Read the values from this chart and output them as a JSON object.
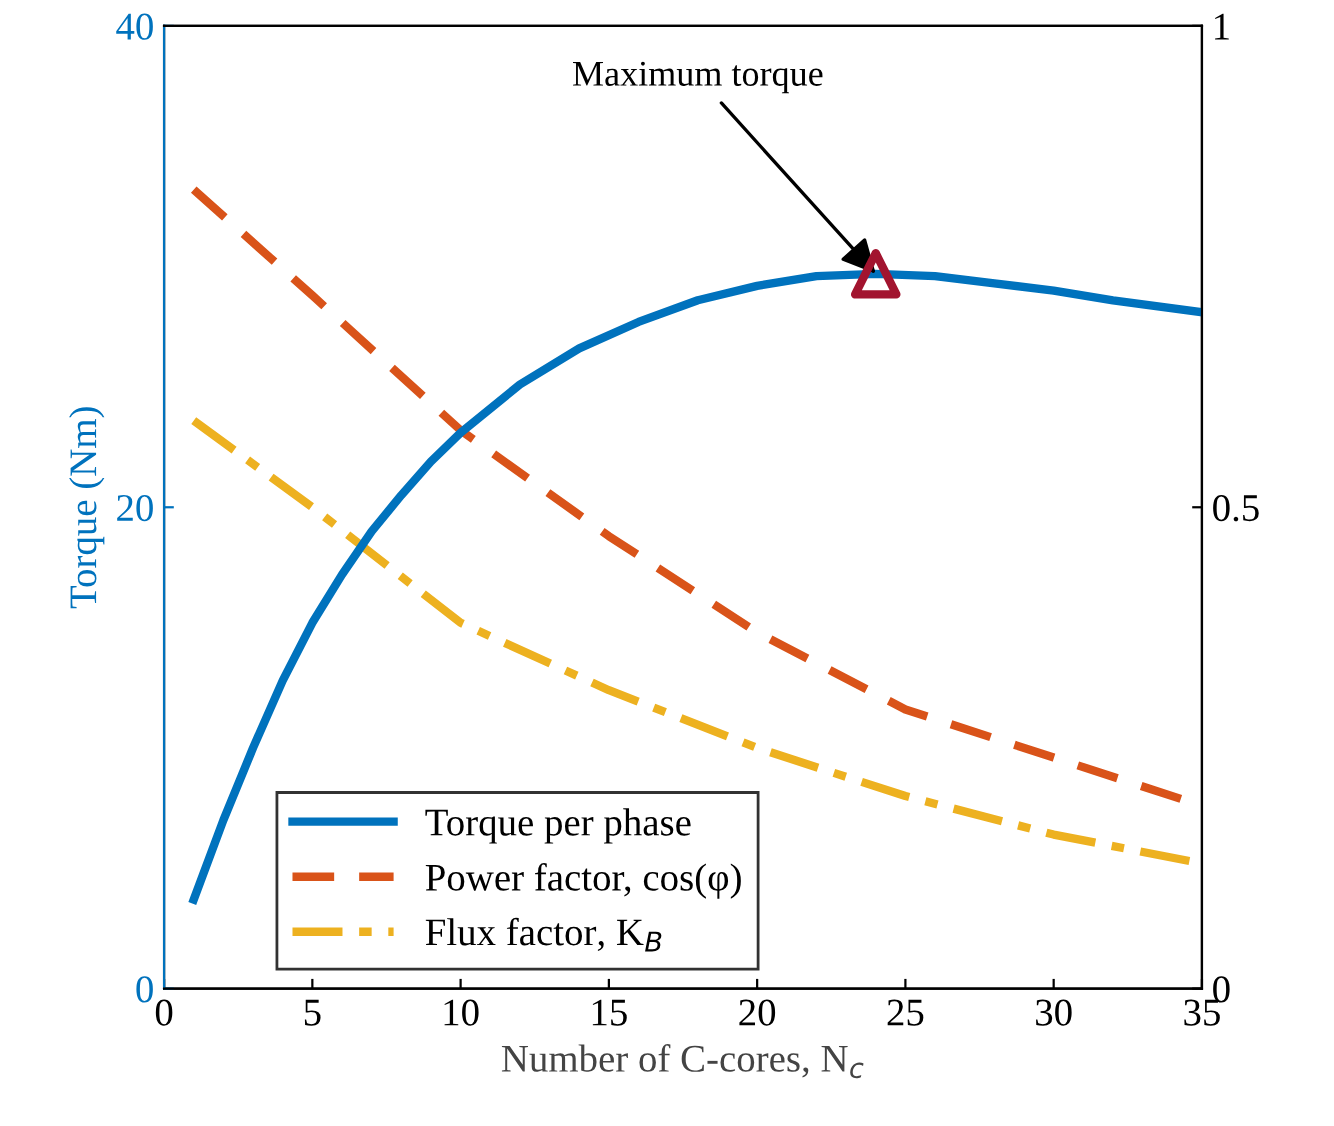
{
  "chart_data": {
    "type": "line",
    "xlabel": "Number of C-cores, N$_{c}$",
    "ylabel": "Torque (Nm)",
    "xlim": [
      0,
      35
    ],
    "xticks": [
      0,
      5,
      10,
      15,
      20,
      25,
      30,
      35
    ],
    "ylim": [
      0,
      40
    ],
    "yticks": [
      0,
      20,
      40
    ],
    "y2lim": [
      0,
      1
    ],
    "y2ticks": [
      0,
      0.5,
      1
    ],
    "grid": false,
    "legend": "bottom left",
    "annotations": [
      {
        "text": "Maximum torque",
        "x": 24,
        "y": 29.7
      }
    ],
    "series": [
      {
        "name": "Torque per phase",
        "color": "#0072bd",
        "line_style": "solid",
        "x": [
          1,
          2,
          3,
          4,
          5,
          6,
          7,
          8,
          9,
          10,
          12,
          14,
          16,
          18,
          20,
          22,
          24,
          26,
          28,
          30,
          32,
          35
        ],
        "values": [
          3.7,
          7.0,
          10.0,
          12.8,
          15.2,
          17.2,
          19.0,
          20.5,
          21.9,
          23.1,
          25.1,
          26.6,
          27.7,
          28.6,
          29.2,
          29.6,
          29.7,
          29.6,
          29.3,
          29.0,
          28.6,
          28.1
        ]
      },
      {
        "name": "Power factor, cos(φ)",
        "color": "#d95319",
        "line_style": "dashed",
        "axis": "y2",
        "x": [
          1,
          5,
          10,
          15,
          20,
          25,
          30,
          35
        ],
        "values": [
          0.83,
          0.72,
          0.58,
          0.47,
          0.37,
          0.29,
          0.24,
          0.19
        ]
      },
      {
        "name": "Flux factor, K$_{B}$",
        "color": "#edb120",
        "line_style": "dashdot",
        "axis": "y2",
        "x": [
          1,
          5,
          10,
          15,
          20,
          25,
          30,
          35
        ],
        "values": [
          0.59,
          0.5,
          0.38,
          0.31,
          0.25,
          0.2,
          0.16,
          0.13
        ]
      },
      {
        "type": "scatter",
        "color": "#a2142f",
        "marker": "triangle",
        "x": [
          24
        ],
        "values": [
          29.7
        ]
      }
    ]
  }
}
